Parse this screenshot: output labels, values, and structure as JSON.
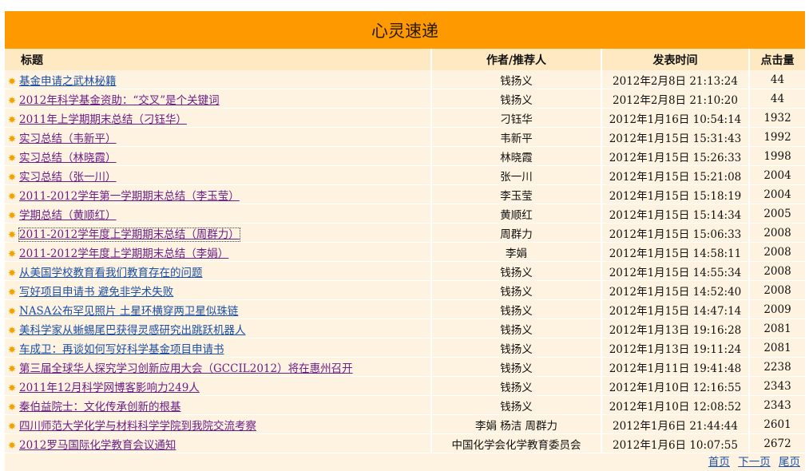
{
  "banner": {
    "title": "心灵速递"
  },
  "headers": {
    "title": "标题",
    "author": "作者/推荐人",
    "time": "发表时间",
    "hits": "点击量"
  },
  "colors": {
    "banner": "#fe9a00",
    "header_bg": "#ffe9c2",
    "row_bg": "#fdf3e0",
    "visited_link": "#6b1e86",
    "link": "#1b4fa8",
    "star": "#f3a300"
  },
  "rows": [
    {
      "title": "基金申请之武林秘籍",
      "author": "钱扬义",
      "time": "2012年2月8日  21:13:24",
      "hits": "44",
      "link": "blue"
    },
    {
      "title": "2012年科学基金资助：“交叉”是个关键词",
      "author": "钱扬义",
      "time": "2012年2月8日  21:10:20",
      "hits": "44",
      "link": "visited"
    },
    {
      "title": "2011年上学期期末总结（刁钰华）",
      "author": "刁钰华",
      "time": "2012年1月16日  10:54:14",
      "hits": "1932",
      "link": "visited"
    },
    {
      "title": "实习总结（韦新平）",
      "author": "韦新平",
      "time": "2012年1月15日  15:31:43",
      "hits": "1992",
      "link": "visited"
    },
    {
      "title": "实习总结（林晓霞）",
      "author": "林晓霞",
      "time": "2012年1月15日  15:26:33",
      "hits": "1998",
      "link": "visited"
    },
    {
      "title": "实习总结（张一川）",
      "author": "张一川",
      "time": "2012年1月15日  15:21:08",
      "hits": "2004",
      "link": "visited"
    },
    {
      "title": "2011-2012学年第一学期期末总结（李玉莹）",
      "author": "李玉莹",
      "time": "2012年1月15日  15:18:19",
      "hits": "2004",
      "link": "visited"
    },
    {
      "title": "学期总结（黄顺红）",
      "author": "黄顺红",
      "time": "2012年1月15日  15:14:34",
      "hits": "2005",
      "link": "visited"
    },
    {
      "title": "2011-2012学年度上学期期末总结（周群力）",
      "author": "周群力",
      "time": "2012年1月15日  15:06:33",
      "hits": "2008",
      "link": "focused"
    },
    {
      "title": "2011-2012学年度上学期期末总结（李娟）",
      "author": "李娟",
      "time": "2012年1月15日  14:58:11",
      "hits": "2008",
      "link": "visited"
    },
    {
      "title": "从美国学校教育看我们教育存在的问题",
      "author": "钱扬义",
      "time": "2012年1月15日  14:55:34",
      "hits": "2008",
      "link": "blue"
    },
    {
      "title": "写好项目申请书  避免非学术失败",
      "author": "钱扬义",
      "time": "2012年1月15日  14:52:40",
      "hits": "2008",
      "link": "blue"
    },
    {
      "title": "NASA公布罕见照片  土星环横穿两卫星似珠链",
      "author": "钱扬义",
      "time": "2012年1月15日  14:47:14",
      "hits": "2009",
      "link": "blue"
    },
    {
      "title": "美科学家从蜥蜴尾巴获得灵感研究出跳跃机器人",
      "author": "钱扬义",
      "time": "2012年1月13日  19:16:28",
      "hits": "2081",
      "link": "blue"
    },
    {
      "title": "车成卫：再谈如何写好科学基金项目申请书",
      "author": "钱扬义",
      "time": "2012年1月13日  19:11:24",
      "hits": "2081",
      "link": "blue"
    },
    {
      "title": "第三届全球华人探究学习创新应用大会（GCCIL2012）将在惠州召开",
      "author": "钱扬义",
      "time": "2012年1月11日  19:41:48",
      "hits": "2238",
      "link": "visited"
    },
    {
      "title": "2011年12月科学网博客影响力249人",
      "author": "钱扬义",
      "time": "2012年1月10日  12:16:55",
      "hits": "2343",
      "link": "visited"
    },
    {
      "title": "秦伯益院士：文化传承创新的根基",
      "author": "钱扬义",
      "time": "2012年1月10日  12:08:52",
      "hits": "2343",
      "link": "visited"
    },
    {
      "title": "四川师范大学化学与材料科学学院到我院交流考察",
      "author": "李娟  杨洁  周群力",
      "time": "2012年1月6日  21:44:44",
      "hits": "2601",
      "link": "visited"
    },
    {
      "title": "2012罗马国际化学教育会议通知",
      "author": "中国化学会化学教育委员会",
      "time": "2012年1月6日  10:07:55",
      "hits": "2672",
      "link": "visited"
    }
  ],
  "pager": {
    "first": "首页",
    "next": "下一页",
    "last": "尾页"
  }
}
